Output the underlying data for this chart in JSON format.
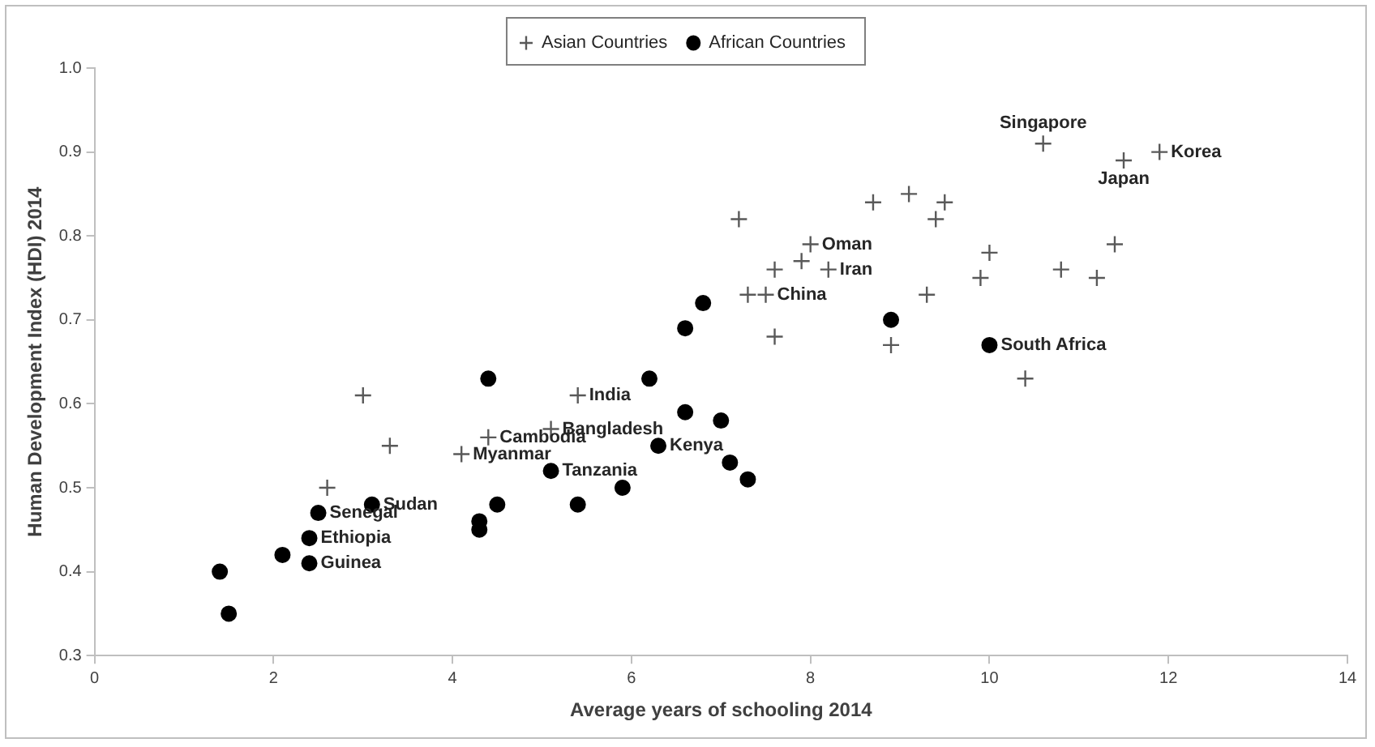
{
  "chart_data": {
    "type": "scatter",
    "xlabel": "Average years of schooling 2014",
    "ylabel": "Human Development Index (HDI) 2014",
    "xlim": [
      0,
      14
    ],
    "xticks": [
      0,
      2,
      4,
      6,
      8,
      10,
      12,
      14
    ],
    "ylim": [
      0.3,
      1.0
    ],
    "yticks": [
      0.3,
      0.4,
      0.5,
      0.6,
      0.7,
      0.8,
      0.9,
      {
        "value": 1.0,
        "label": "1.0"
      }
    ],
    "grid": false,
    "legend": "top",
    "series": [
      {
        "name": "Asian Countries",
        "color": "#595959",
        "marker": "cross",
        "x": [
          3.0,
          3.3,
          2.6,
          4.1,
          4.4,
          5.1,
          5.4,
          7.2,
          8.0,
          7.6,
          7.9,
          8.2,
          7.3,
          7.5,
          7.6,
          8.7,
          9.1,
          9.5,
          9.4,
          10.0,
          9.9,
          9.3,
          8.9,
          10.4,
          10.6,
          11.5,
          11.9,
          11.4,
          10.8,
          11.2
        ],
        "values": [
          0.61,
          0.55,
          0.5,
          0.54,
          0.56,
          0.57,
          0.61,
          0.82,
          0.79,
          0.76,
          0.77,
          0.76,
          0.73,
          0.73,
          0.68,
          0.84,
          0.85,
          0.84,
          0.82,
          0.78,
          0.75,
          0.73,
          0.67,
          0.63,
          0.91,
          0.89,
          0.9,
          0.79,
          0.76,
          0.75
        ]
      },
      {
        "name": "African Countries",
        "color": "#000000",
        "marker": "circle",
        "x": [
          1.4,
          1.5,
          2.1,
          2.5,
          2.4,
          2.4,
          3.1,
          4.3,
          4.3,
          4.5,
          5.1,
          4.4,
          5.4,
          5.9,
          6.3,
          6.6,
          7.0,
          7.1,
          7.3,
          6.2,
          6.6,
          6.8,
          8.9,
          10.0
        ],
        "values": [
          0.4,
          0.35,
          0.42,
          0.47,
          0.44,
          0.41,
          0.48,
          0.46,
          0.45,
          0.48,
          0.52,
          0.63,
          0.48,
          0.5,
          0.55,
          0.59,
          0.58,
          0.53,
          0.51,
          0.63,
          0.69,
          0.72,
          0.7,
          0.67
        ]
      }
    ],
    "annotations": [
      {
        "text": "Myanmar",
        "x": 4.1,
        "y": 0.54
      },
      {
        "text": "Cambodia",
        "x": 4.4,
        "y": 0.56
      },
      {
        "text": "Bangladesh",
        "x": 5.1,
        "y": 0.57
      },
      {
        "text": "India",
        "x": 5.4,
        "y": 0.61
      },
      {
        "text": "Oman",
        "x": 8.0,
        "y": 0.79
      },
      {
        "text": "Iran",
        "x": 8.2,
        "y": 0.76
      },
      {
        "text": "China",
        "x": 7.5,
        "y": 0.73
      },
      {
        "text": "Singapore",
        "x": 10.6,
        "y": 0.91
      },
      {
        "text": "Japan",
        "x": 11.5,
        "y": 0.89
      },
      {
        "text": "Korea",
        "x": 11.9,
        "y": 0.9
      },
      {
        "text": "Senegal",
        "x": 2.5,
        "y": 0.47
      },
      {
        "text": "Ethiopia",
        "x": 2.4,
        "y": 0.44
      },
      {
        "text": "Guinea",
        "x": 2.4,
        "y": 0.41
      },
      {
        "text": "Sudan",
        "x": 3.1,
        "y": 0.48
      },
      {
        "text": "Tanzania",
        "x": 5.1,
        "y": 0.52
      },
      {
        "text": "Kenya",
        "x": 6.3,
        "y": 0.55
      },
      {
        "text": "South Africa",
        "x": 10.0,
        "y": 0.67
      }
    ]
  }
}
